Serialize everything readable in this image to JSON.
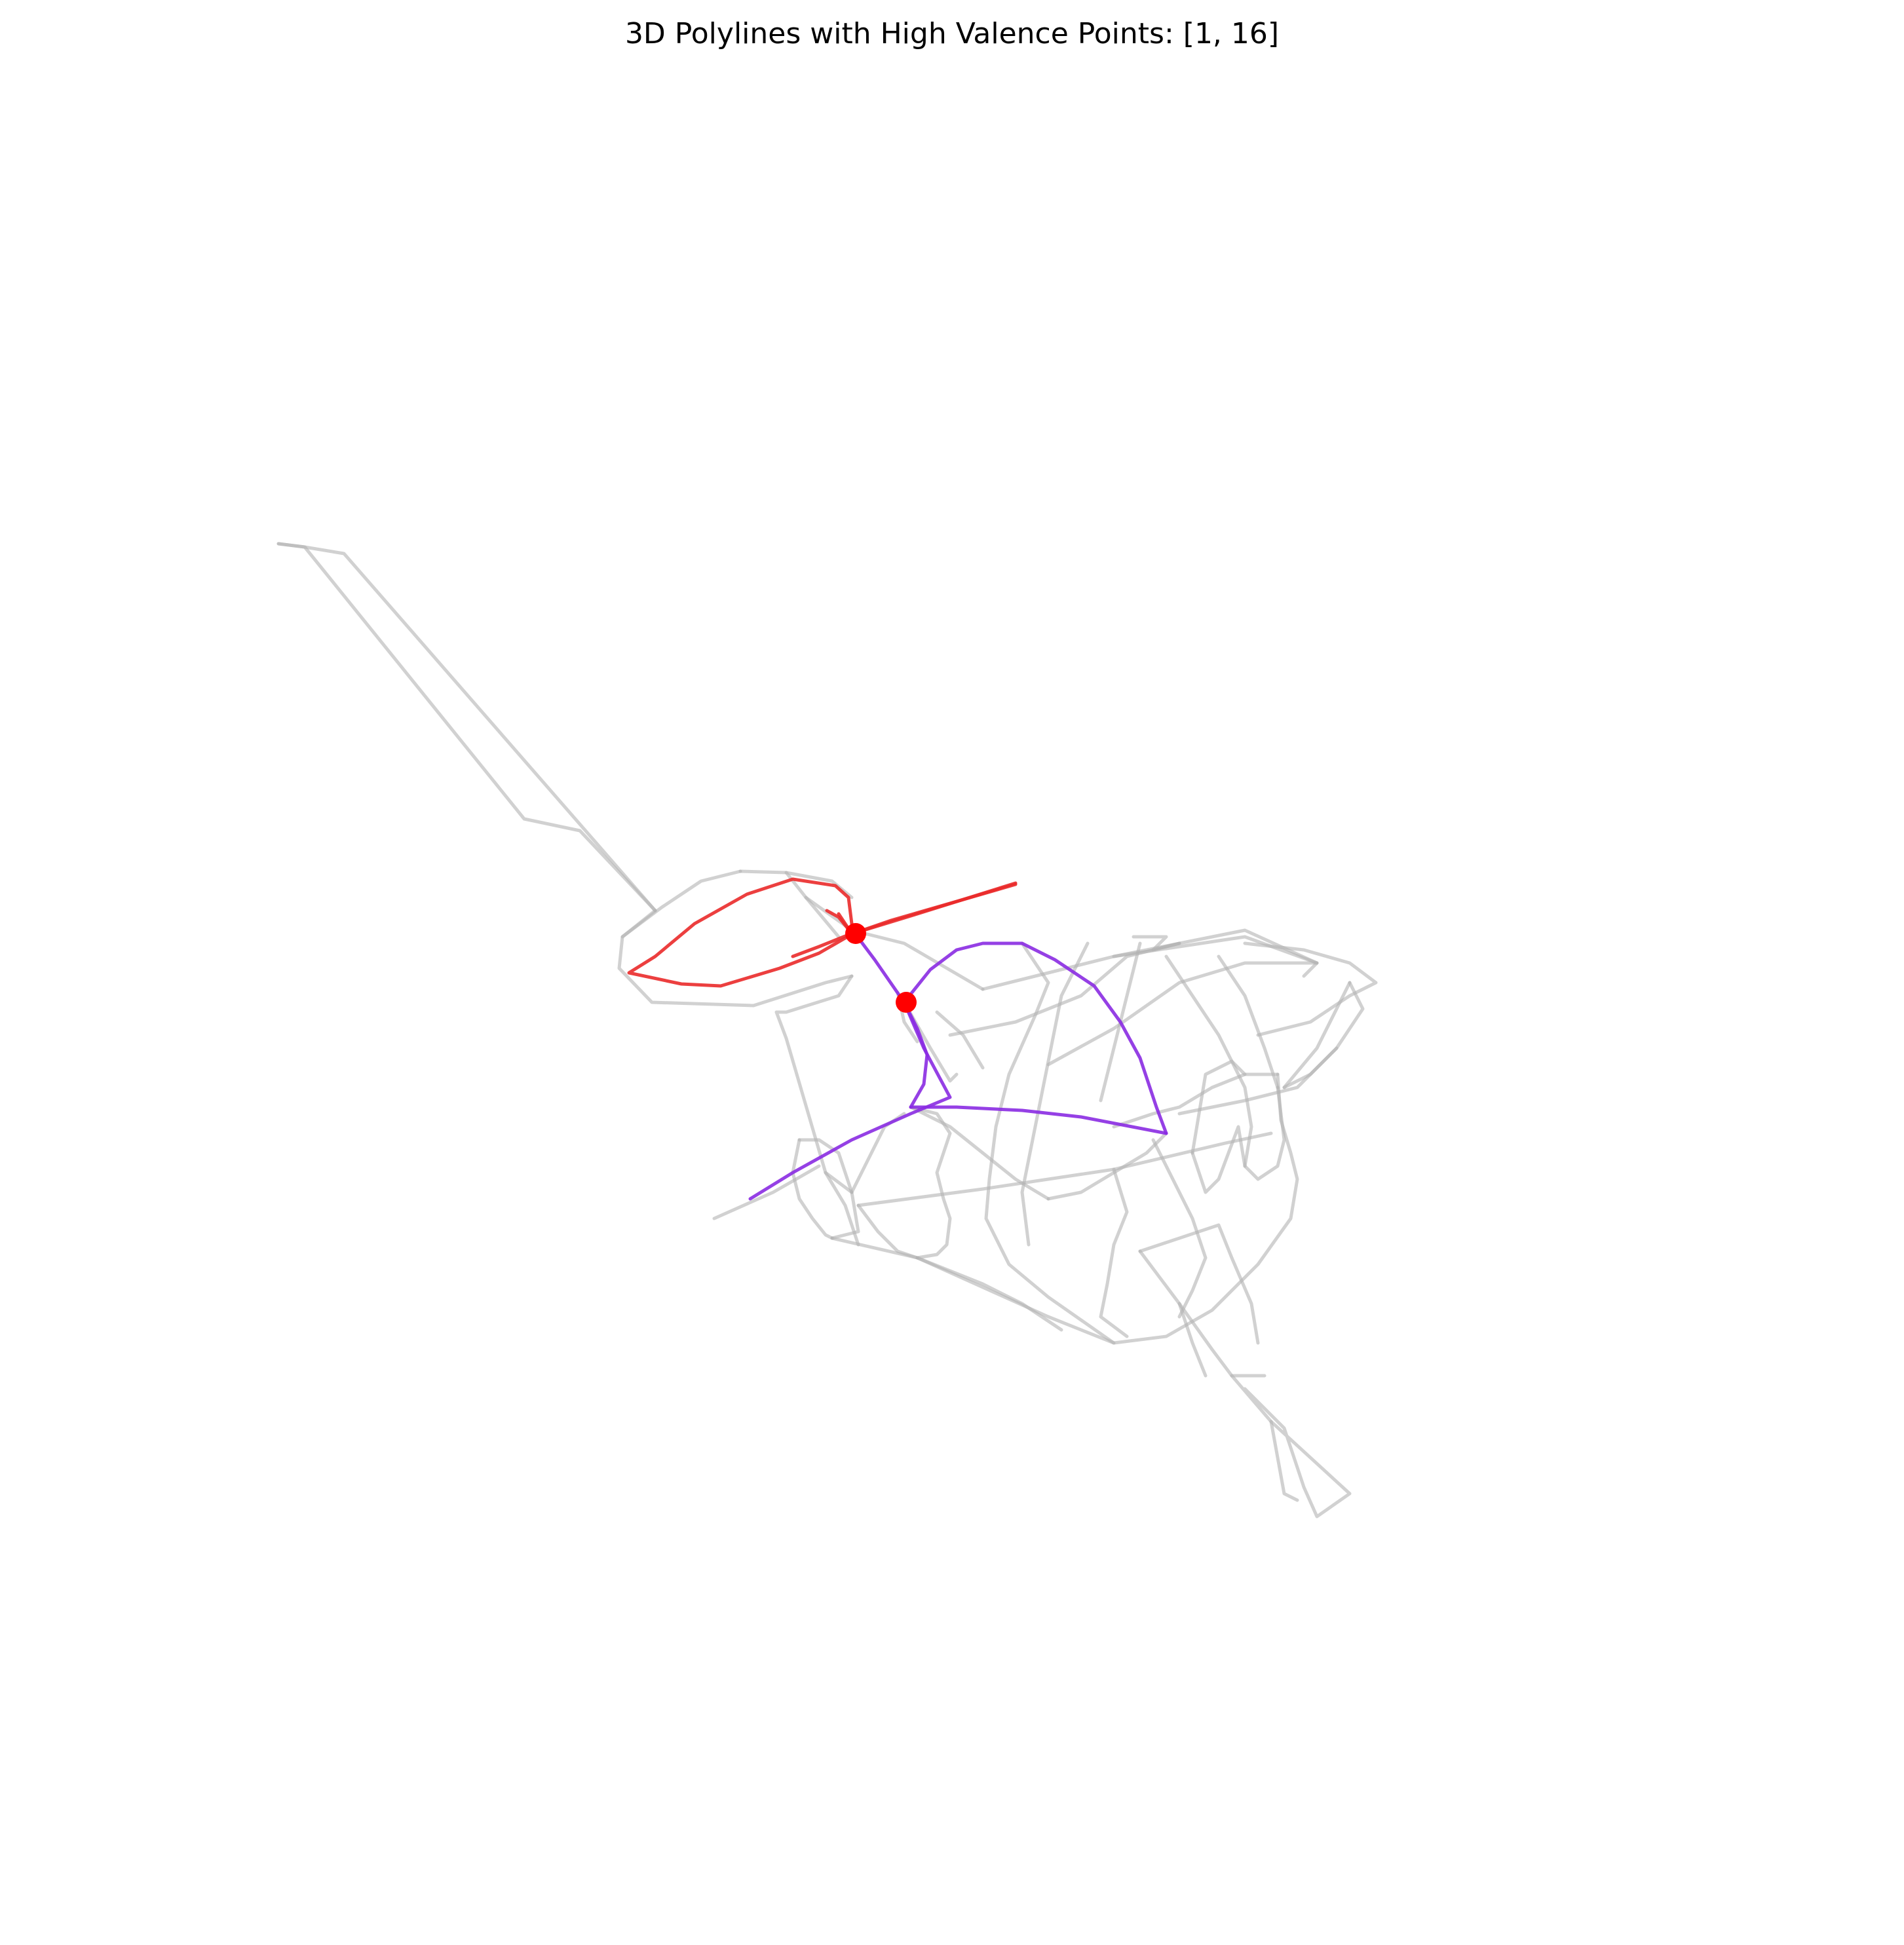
{
  "title": "3D Polylines with High Valence Points: [1, 16]",
  "colors": {
    "background": "#ffffff",
    "wireframe": "#b3b3b3",
    "red_curves": "#ea2a2a",
    "purple_curves": "#8a2be2",
    "valence_points": "#ff0000"
  },
  "high_valence_point_ids": [
    1,
    16
  ]
}
